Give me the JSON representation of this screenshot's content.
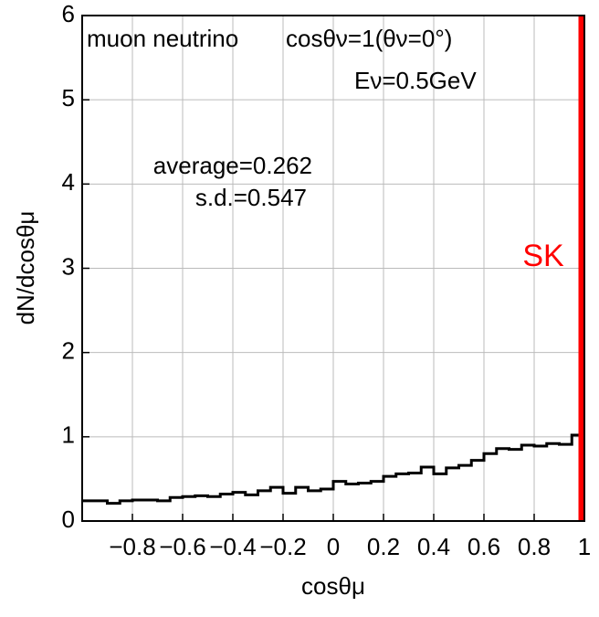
{
  "chart_data": {
    "type": "histogram",
    "xlabel": "cosθμ",
    "ylabel": "dN/dcosθμ",
    "bins": [
      -1,
      -0.95,
      -0.9,
      -0.85,
      -0.8,
      -0.75,
      -0.7,
      -0.65,
      -0.6,
      -0.55,
      -0.5,
      -0.45,
      -0.4,
      -0.35,
      -0.3,
      -0.25,
      -0.2,
      -0.15,
      -0.1,
      -0.05,
      0,
      0.05,
      0.1,
      0.15,
      0.2,
      0.25,
      0.3,
      0.35,
      0.4,
      0.45,
      0.5,
      0.55,
      0.6,
      0.65,
      0.7,
      0.75,
      0.8,
      0.85,
      0.9,
      0.95,
      1
    ],
    "values": [
      0.24,
      0.24,
      0.21,
      0.24,
      0.25,
      0.25,
      0.24,
      0.28,
      0.29,
      0.3,
      0.29,
      0.32,
      0.34,
      0.31,
      0.36,
      0.4,
      0.33,
      0.4,
      0.36,
      0.38,
      0.47,
      0.44,
      0.45,
      0.47,
      0.53,
      0.56,
      0.57,
      0.64,
      0.56,
      0.63,
      0.66,
      0.72,
      0.8,
      0.86,
      0.85,
      0.9,
      0.89,
      0.92,
      0.91,
      1.02
    ],
    "color": "#000000",
    "xlim": [
      -1,
      1
    ],
    "xticks": [
      {
        "value": -0.8,
        "label": "−0.8"
      },
      {
        "value": -0.6,
        "label": "−0.6"
      },
      {
        "value": -0.4,
        "label": "−0.4"
      },
      {
        "value": -0.2,
        "label": "−0.2"
      },
      0,
      0.2,
      0.4,
      0.6,
      0.8,
      1
    ],
    "ylim": [
      0,
      6
    ],
    "yticks": [
      0,
      1,
      2,
      3,
      4,
      5,
      6
    ],
    "grid": true,
    "annotations": [
      "muon neutrino",
      "cosθν=1(θν=0°)",
      "Eν=0.5GeV",
      "average=0.262",
      "s.d.=0.547"
    ],
    "marker_line": {
      "x": 1,
      "label": "SK",
      "color": "#ff0000"
    }
  }
}
